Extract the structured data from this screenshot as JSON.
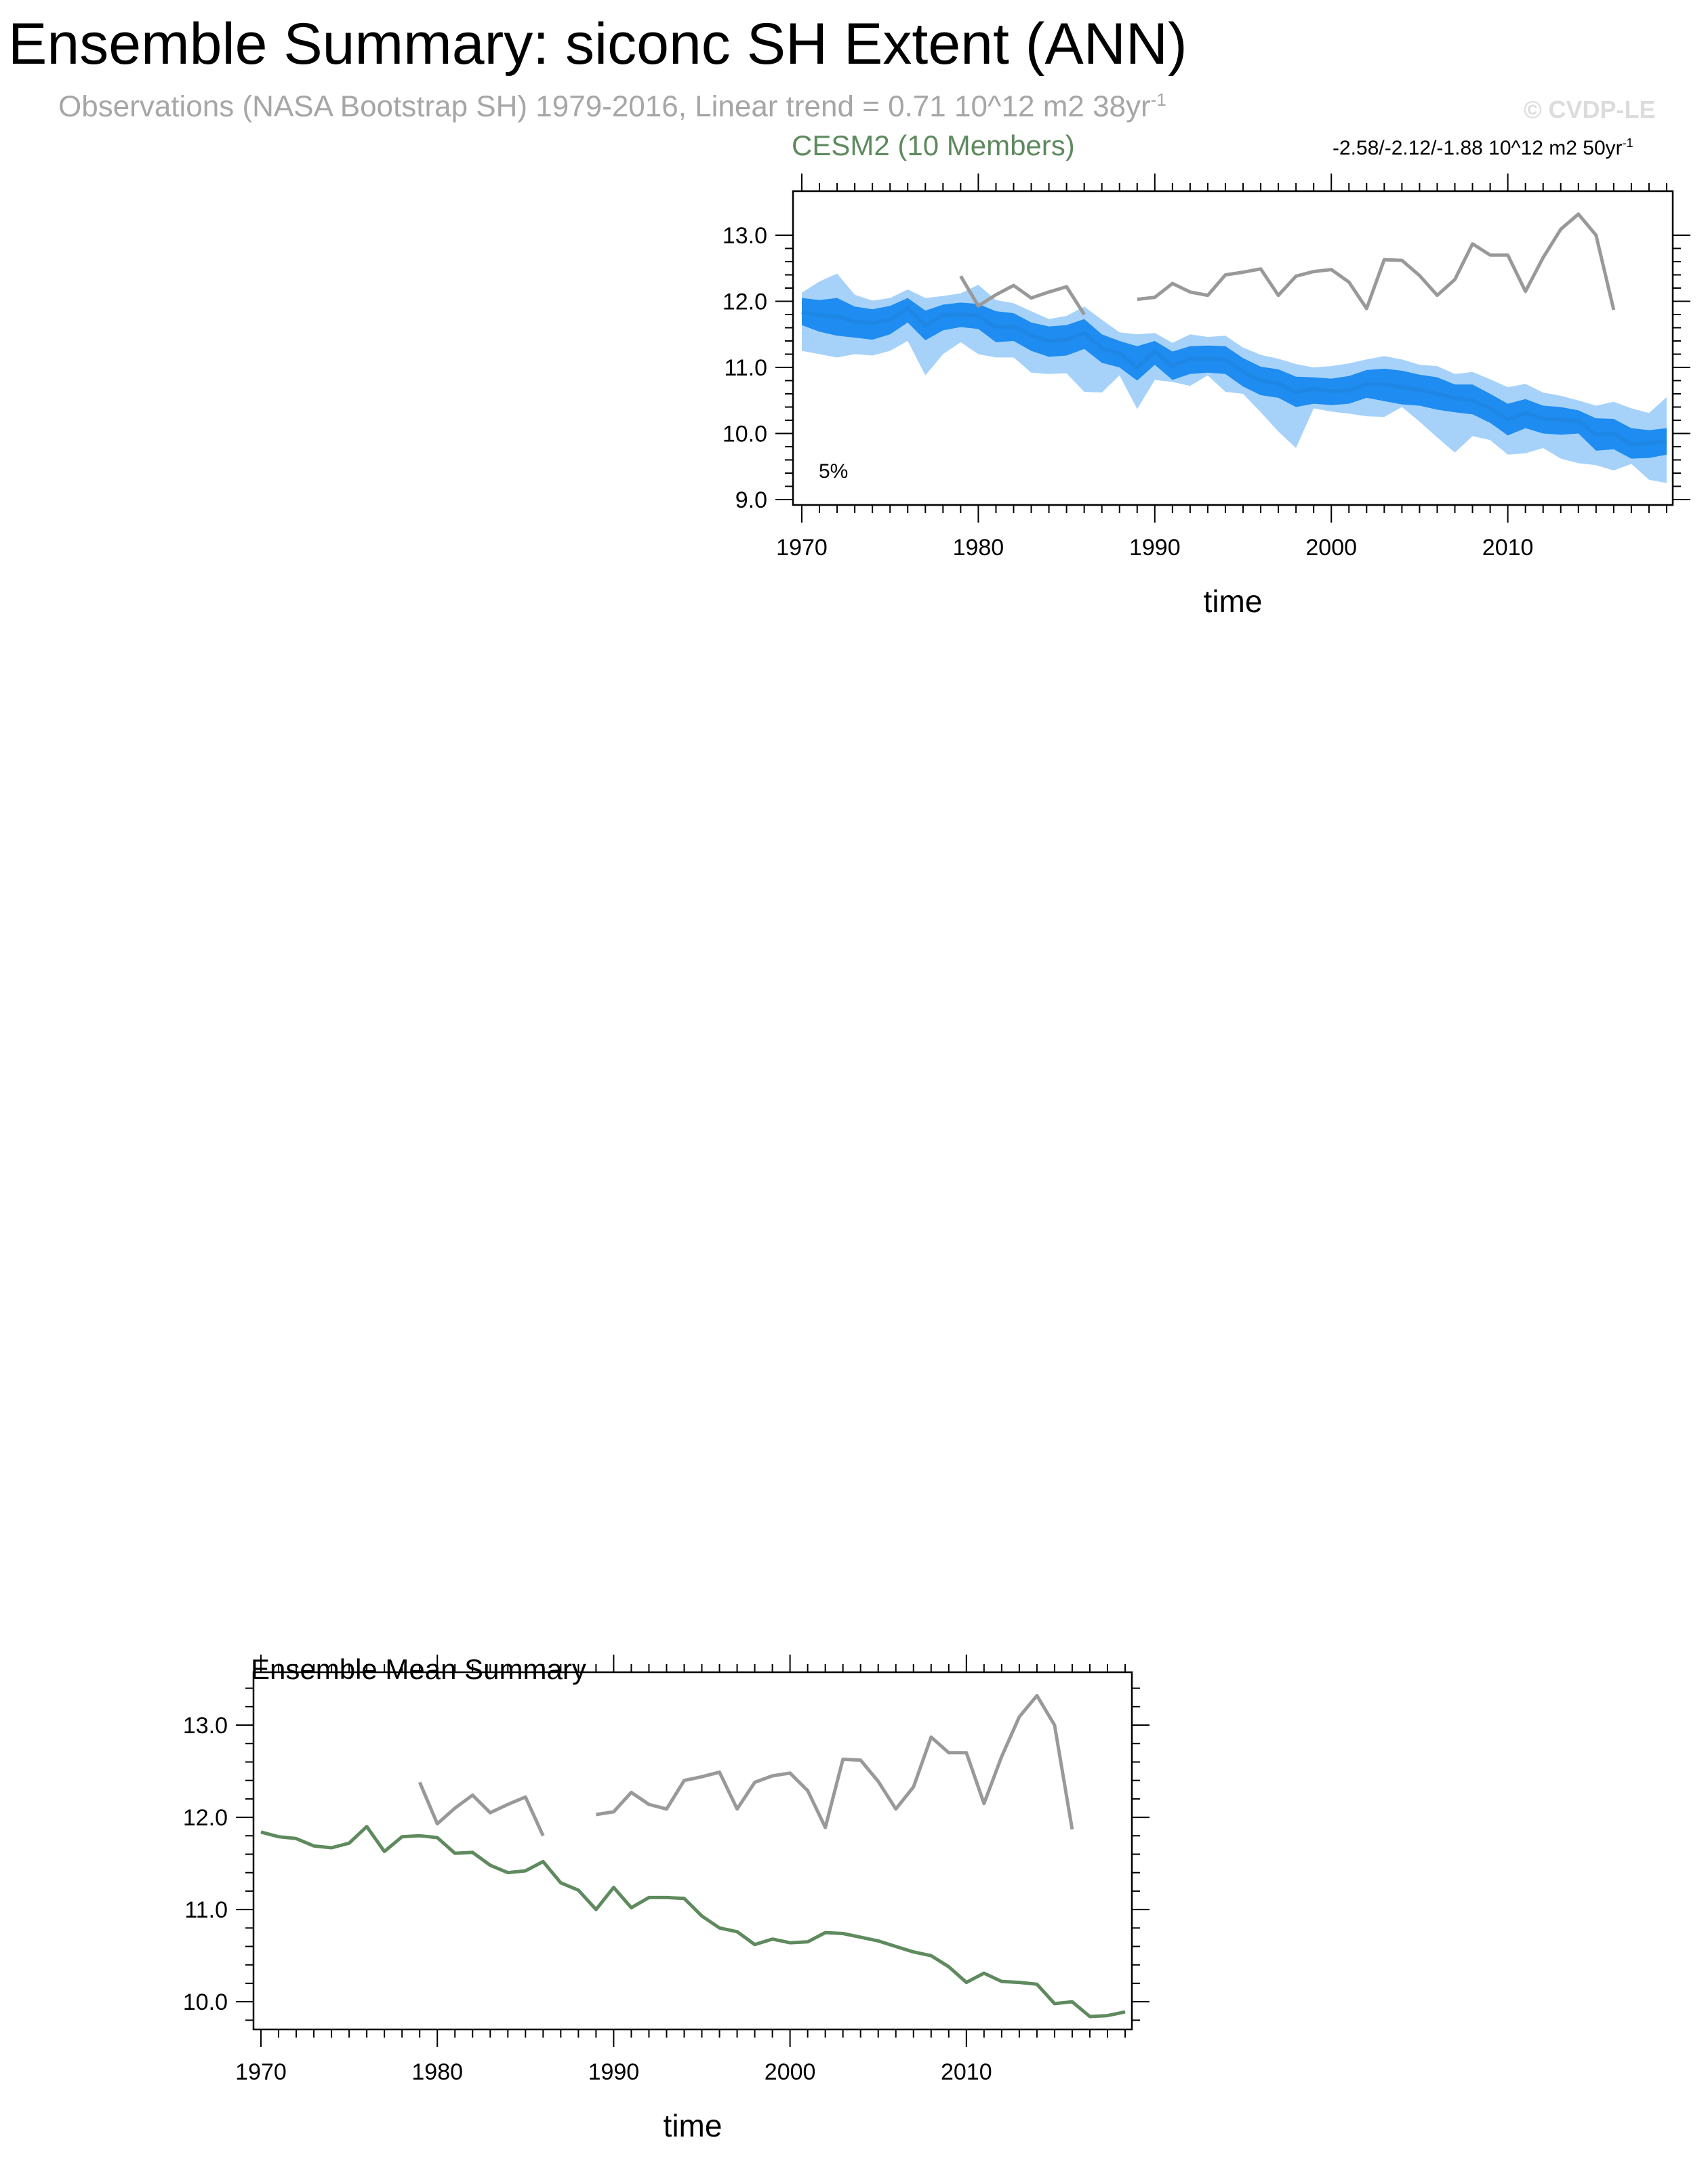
{
  "title": "Ensemble Summary: siconc SH Extent (ANN)",
  "subtitle_obs": "Observations (NASA Bootstrap SH) 1979-2016, Linear trend = 0.71 10^12 m2 38yr",
  "subtitle_obs_sup": "-1",
  "copyright": "© CVDP-LE",
  "colors": {
    "ens_mean": "#1e87e6",
    "inner_band": "#1e8cf0",
    "outer_band": "#a6d2fa",
    "obs": "#999999",
    "summary_mean": "#5e8a5e"
  },
  "chart_data": [
    {
      "type": "line",
      "title": "CESM2 (10 Members)",
      "trend_label": "-2.58/-2.12/-1.88 10^12 m2 50yr",
      "trend_label_sup": "-1",
      "annotation": "5%",
      "xlabel": "time",
      "ylabel": "",
      "xlim": [
        1970,
        2019
      ],
      "ylim": [
        9.0,
        13.0
      ],
      "xticks": [
        "1970",
        "1980",
        "1990",
        "2000",
        "2010"
      ],
      "yticks": [
        "9.0",
        "10.0",
        "11.0",
        "12.0",
        "13.0"
      ],
      "x": [
        1970,
        1971,
        1972,
        1973,
        1974,
        1975,
        1976,
        1977,
        1978,
        1979,
        1980,
        1981,
        1982,
        1983,
        1984,
        1985,
        1986,
        1987,
        1988,
        1989,
        1990,
        1991,
        1992,
        1993,
        1994,
        1995,
        1996,
        1997,
        1998,
        1999,
        2000,
        2001,
        2002,
        2003,
        2004,
        2005,
        2006,
        2007,
        2008,
        2009,
        2010,
        2011,
        2012,
        2013,
        2014,
        2015,
        2016,
        2017,
        2018,
        2019
      ],
      "series": [
        {
          "role": "ensemble-mean",
          "values": [
            11.84,
            11.79,
            11.77,
            11.69,
            11.67,
            11.72,
            11.9,
            11.63,
            11.79,
            11.8,
            11.78,
            11.61,
            11.62,
            11.48,
            11.4,
            11.42,
            11.52,
            11.29,
            11.21,
            11.0,
            11.24,
            11.02,
            11.13,
            11.13,
            11.12,
            10.93,
            10.8,
            10.76,
            10.62,
            10.68,
            10.64,
            10.65,
            10.75,
            10.74,
            10.7,
            10.66,
            10.6,
            10.54,
            10.5,
            10.38,
            10.21,
            10.31,
            10.22,
            10.21,
            10.19,
            9.98,
            10.0,
            9.84,
            9.85,
            9.89
          ]
        },
        {
          "role": "inner-band-upper",
          "values": [
            12.05,
            12.02,
            12.05,
            11.92,
            11.88,
            11.93,
            12.05,
            11.86,
            11.95,
            11.98,
            11.96,
            11.85,
            11.82,
            11.68,
            11.62,
            11.64,
            11.73,
            11.5,
            11.4,
            11.32,
            11.4,
            11.24,
            11.32,
            11.33,
            11.32,
            11.14,
            11.01,
            10.97,
            10.86,
            10.85,
            10.83,
            10.87,
            10.96,
            10.98,
            10.95,
            10.89,
            10.85,
            10.74,
            10.74,
            10.6,
            10.45,
            10.52,
            10.42,
            10.4,
            10.35,
            10.23,
            10.22,
            10.08,
            10.05,
            10.08
          ]
        },
        {
          "role": "inner-band-lower",
          "values": [
            11.64,
            11.54,
            11.48,
            11.45,
            11.42,
            11.5,
            11.68,
            11.41,
            11.56,
            11.61,
            11.58,
            11.38,
            11.4,
            11.25,
            11.16,
            11.18,
            11.28,
            11.07,
            11.0,
            10.8,
            11.04,
            10.81,
            10.9,
            10.92,
            10.9,
            10.71,
            10.58,
            10.54,
            10.4,
            10.45,
            10.43,
            10.45,
            10.54,
            10.49,
            10.44,
            10.42,
            10.36,
            10.32,
            10.29,
            10.16,
            9.97,
            10.08,
            10.0,
            9.98,
            10.0,
            9.74,
            9.76,
            9.62,
            9.63,
            9.68
          ]
        },
        {
          "role": "outer-band-upper",
          "values": [
            12.13,
            12.3,
            12.42,
            12.1,
            12.01,
            12.05,
            12.18,
            12.05,
            12.08,
            12.12,
            12.25,
            12.02,
            11.97,
            11.85,
            11.73,
            11.78,
            11.92,
            11.72,
            11.53,
            11.5,
            11.52,
            11.37,
            11.5,
            11.46,
            11.48,
            11.3,
            11.19,
            11.13,
            11.05,
            11.0,
            11.02,
            11.06,
            11.12,
            11.17,
            11.12,
            11.04,
            11.02,
            10.9,
            10.93,
            10.82,
            10.7,
            10.75,
            10.62,
            10.57,
            10.5,
            10.42,
            10.48,
            10.38,
            10.31,
            10.55
          ]
        },
        {
          "role": "outer-band-lower",
          "values": [
            11.25,
            11.2,
            11.15,
            11.2,
            11.18,
            11.25,
            11.4,
            10.88,
            11.2,
            11.38,
            11.2,
            11.15,
            11.15,
            10.92,
            10.9,
            10.91,
            10.63,
            10.62,
            10.88,
            10.37,
            10.81,
            10.78,
            10.72,
            10.88,
            10.63,
            10.6,
            10.32,
            10.03,
            9.78,
            10.38,
            10.33,
            10.3,
            10.26,
            10.25,
            10.4,
            10.18,
            9.94,
            9.71,
            9.96,
            9.9,
            9.68,
            9.7,
            9.78,
            9.62,
            9.55,
            9.52,
            9.44,
            9.54,
            9.3,
            9.25
          ]
        },
        {
          "role": "observations",
          "values": [
            null,
            null,
            null,
            null,
            null,
            null,
            null,
            null,
            null,
            12.38,
            11.93,
            12.1,
            12.24,
            12.05,
            12.14,
            12.22,
            11.8,
            null,
            null,
            12.03,
            12.06,
            12.27,
            12.14,
            12.09,
            12.4,
            12.44,
            12.49,
            12.09,
            12.38,
            12.45,
            12.48,
            12.29,
            11.89,
            12.63,
            12.62,
            12.39,
            12.09,
            12.33,
            12.87,
            12.7,
            12.7,
            12.15,
            12.66,
            13.09,
            13.32,
            13.0,
            11.87,
            null,
            null,
            null
          ]
        }
      ]
    },
    {
      "type": "line",
      "title": "Ensemble Mean Summary",
      "xlabel": "time",
      "ylabel": "",
      "xlim": [
        1970,
        2019
      ],
      "ylim": [
        9.7,
        13.5
      ],
      "xticks": [
        "1970",
        "1980",
        "1990",
        "2000",
        "2010"
      ],
      "yticks": [
        "10.0",
        "11.0",
        "12.0",
        "13.0"
      ],
      "x": [
        1970,
        1971,
        1972,
        1973,
        1974,
        1975,
        1976,
        1977,
        1978,
        1979,
        1980,
        1981,
        1982,
        1983,
        1984,
        1985,
        1986,
        1987,
        1988,
        1989,
        1990,
        1991,
        1992,
        1993,
        1994,
        1995,
        1996,
        1997,
        1998,
        1999,
        2000,
        2001,
        2002,
        2003,
        2004,
        2005,
        2006,
        2007,
        2008,
        2009,
        2010,
        2011,
        2012,
        2013,
        2014,
        2015,
        2016,
        2017,
        2018,
        2019
      ],
      "series": [
        {
          "role": "ensemble-mean",
          "values": [
            11.84,
            11.79,
            11.77,
            11.69,
            11.67,
            11.72,
            11.9,
            11.63,
            11.79,
            11.8,
            11.78,
            11.61,
            11.62,
            11.48,
            11.4,
            11.42,
            11.52,
            11.29,
            11.21,
            11.0,
            11.24,
            11.02,
            11.13,
            11.13,
            11.12,
            10.93,
            10.8,
            10.76,
            10.62,
            10.68,
            10.64,
            10.65,
            10.75,
            10.74,
            10.7,
            10.66,
            10.6,
            10.54,
            10.5,
            10.38,
            10.21,
            10.31,
            10.22,
            10.21,
            10.19,
            9.98,
            10.0,
            9.84,
            9.85,
            9.89
          ]
        },
        {
          "role": "observations",
          "values": [
            null,
            null,
            null,
            null,
            null,
            null,
            null,
            null,
            null,
            12.38,
            11.93,
            12.1,
            12.24,
            12.05,
            12.14,
            12.22,
            11.8,
            null,
            null,
            12.03,
            12.06,
            12.27,
            12.14,
            12.09,
            12.4,
            12.44,
            12.49,
            12.09,
            12.38,
            12.45,
            12.48,
            12.29,
            11.89,
            12.63,
            12.62,
            12.39,
            12.09,
            12.33,
            12.87,
            12.7,
            12.7,
            12.15,
            12.66,
            13.09,
            13.32,
            13.0,
            11.87,
            null,
            null,
            null
          ]
        }
      ]
    }
  ]
}
